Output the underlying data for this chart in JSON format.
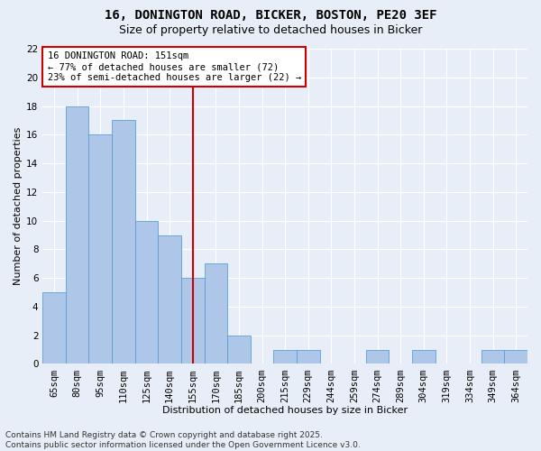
{
  "title_line1": "16, DONINGTON ROAD, BICKER, BOSTON, PE20 3EF",
  "title_line2": "Size of property relative to detached houses in Bicker",
  "xlabel": "Distribution of detached houses by size in Bicker",
  "ylabel": "Number of detached properties",
  "bar_labels": [
    "65sqm",
    "80sqm",
    "95sqm",
    "110sqm",
    "125sqm",
    "140sqm",
    "155sqm",
    "170sqm",
    "185sqm",
    "200sqm",
    "215sqm",
    "229sqm",
    "244sqm",
    "259sqm",
    "274sqm",
    "289sqm",
    "304sqm",
    "319sqm",
    "334sqm",
    "349sqm",
    "364sqm"
  ],
  "bar_values": [
    5,
    18,
    16,
    17,
    10,
    9,
    6,
    7,
    2,
    0,
    1,
    1,
    0,
    0,
    1,
    0,
    1,
    0,
    0,
    1,
    1
  ],
  "bar_color": "#aec6e8",
  "bar_edgecolor": "#5a9fd4",
  "highlight_index": 6,
  "annotation_text": "16 DONINGTON ROAD: 151sqm\n← 77% of detached houses are smaller (72)\n23% of semi-detached houses are larger (22) →",
  "annotation_box_color": "#ffffff",
  "annotation_border_color": "#cc0000",
  "vline_color": "#cc0000",
  "ylim": [
    0,
    22
  ],
  "yticks": [
    0,
    2,
    4,
    6,
    8,
    10,
    12,
    14,
    16,
    18,
    20,
    22
  ],
  "footer": "Contains HM Land Registry data © Crown copyright and database right 2025.\nContains public sector information licensed under the Open Government Licence v3.0.",
  "bg_color": "#e8eef7",
  "plot_bg_color": "#e8eef7",
  "grid_color": "#ffffff",
  "title_fontsize": 10,
  "subtitle_fontsize": 9,
  "axis_label_fontsize": 8,
  "tick_fontsize": 7.5,
  "annotation_fontsize": 7.5,
  "footer_fontsize": 6.5
}
